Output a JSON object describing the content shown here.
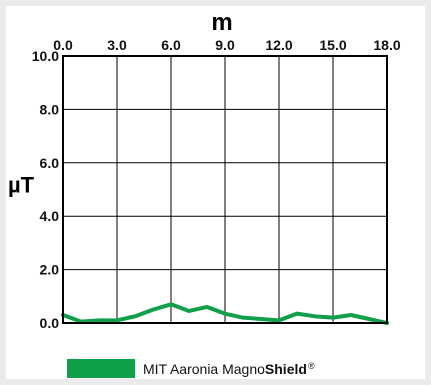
{
  "chart_data": {
    "type": "line",
    "xlabel": "m",
    "ylabel": "µT",
    "xlim": [
      0,
      18
    ],
    "ylim": [
      0,
      10
    ],
    "x_ticks": [
      "0.0",
      "3.0",
      "6.0",
      "9.0",
      "12.0",
      "15.0",
      "18.0"
    ],
    "y_ticks": [
      "10.0",
      "8.0",
      "6.0",
      "4.0",
      "2.0",
      "0.0"
    ],
    "x_tick_values": [
      0,
      3,
      6,
      9,
      12,
      15,
      18
    ],
    "y_tick_values": [
      10,
      8,
      6,
      4,
      2,
      0
    ],
    "grid": true,
    "legend_position": "bottom",
    "series": [
      {
        "name": "MIT Aaronia MagnoShield",
        "color": "#10a04a",
        "x": [
          0,
          1,
          2,
          3,
          4,
          5,
          6,
          7,
          8,
          9,
          10,
          11,
          12,
          13,
          14,
          15,
          16,
          17,
          18
        ],
        "y": [
          0.3,
          0.05,
          0.1,
          0.1,
          0.25,
          0.5,
          0.7,
          0.45,
          0.6,
          0.35,
          0.2,
          0.15,
          0.1,
          0.35,
          0.25,
          0.2,
          0.3,
          0.15,
          0.0
        ]
      }
    ]
  },
  "legend": {
    "text_prefix": "MIT Aaronia Magno",
    "text_brand": "Shield",
    "text_reg": "®",
    "swatch_color": "#10a04a"
  }
}
